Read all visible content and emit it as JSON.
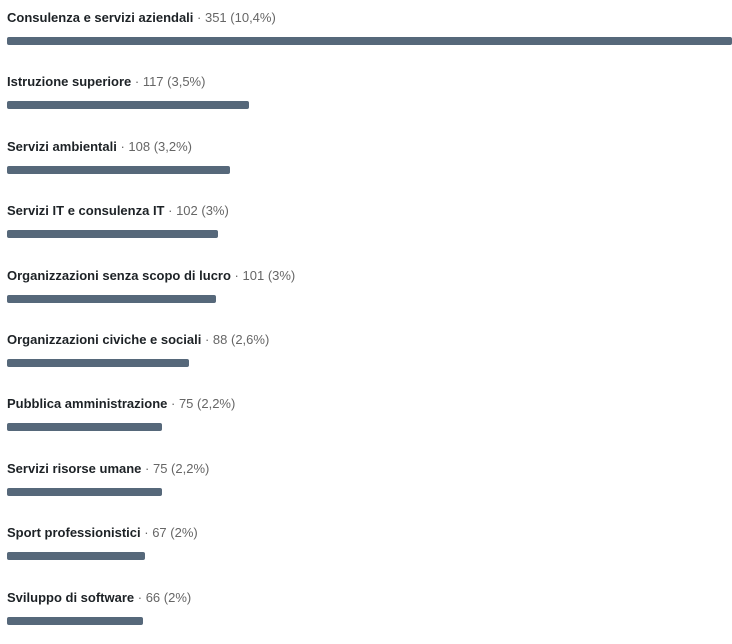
{
  "colors": {
    "bar": "#56687a",
    "label": "#1d2226",
    "muted": "#666666"
  },
  "separator": "·",
  "chart_data": {
    "type": "bar",
    "orientation": "horizontal",
    "categories": [
      "Consulenza e servizi aziendali",
      "Istruzione superiore",
      "Servizi ambientali",
      "Servizi IT e consulenza IT",
      "Organizzazioni senza scopo di lucro",
      "Organizzazioni civiche e sociali",
      "Pubblica amministrazione",
      "Servizi risorse umane",
      "Sport professionistici",
      "Sviluppo di software"
    ],
    "values": [
      351,
      117,
      108,
      102,
      101,
      88,
      75,
      75,
      67,
      66
    ],
    "percent_labels": [
      "(10,4%)",
      "(3,5%)",
      "(3,2%)",
      "(3%)",
      "(3%)",
      "(2,6%)",
      "(2,2%)",
      "(2,2%)",
      "(2%)",
      "(2%)"
    ],
    "xlim": [
      0,
      351
    ],
    "grid": false,
    "legend": "none"
  }
}
